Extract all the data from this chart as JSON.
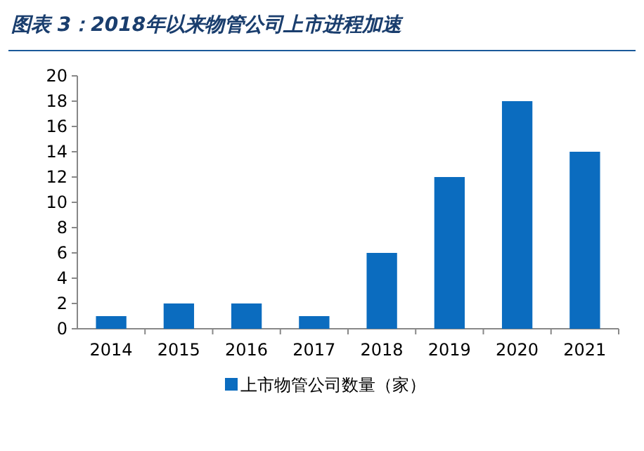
{
  "chart_data": {
    "type": "bar",
    "title": "图表 3：2018年以来物管公司上市进程加速",
    "categories": [
      "2014",
      "2015",
      "2016",
      "2017",
      "2018",
      "2019",
      "2020",
      "2021"
    ],
    "series": [
      {
        "name": "上市物管公司数量（家）",
        "color": "#0b6cbf",
        "values": [
          1,
          2,
          2,
          1,
          6,
          12,
          18,
          14
        ]
      }
    ],
    "ylim": [
      0,
      20
    ],
    "yticks": [
      0,
      2,
      4,
      6,
      8,
      10,
      12,
      14,
      16,
      18,
      20
    ],
    "grid": false,
    "legend": "bottom"
  }
}
